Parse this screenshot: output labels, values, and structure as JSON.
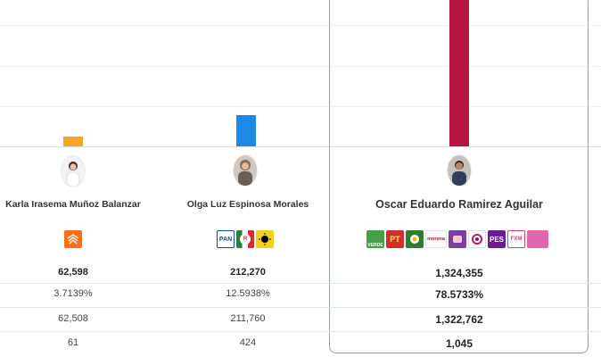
{
  "candidates": [
    {
      "name": "Karla Irasema Muñoz Balanzar",
      "bar_color": "#f5a623",
      "parties": [
        {
          "icon": "movimiento-ciudadano-logo",
          "label": "",
          "color": "#ff6f1a"
        }
      ],
      "stats": {
        "votes": "62,598",
        "percent": "3.7139%",
        "row3": "62,508",
        "row4": "61"
      }
    },
    {
      "name": "Olga Luz Espinosa Morales",
      "bar_color": "#1e88e5",
      "parties": [
        {
          "icon": "pan-logo",
          "label": "PAN",
          "color": "#0a4fa3"
        },
        {
          "icon": "pri-logo",
          "label": "PRI",
          "color": "#d32f2f"
        },
        {
          "icon": "prd-logo",
          "label": "PRD",
          "color": "#f2d11b"
        }
      ],
      "stats": {
        "votes": "212,270",
        "percent": "12.5938%",
        "row3": "211,760",
        "row4": "424"
      }
    },
    {
      "name": "Oscar Eduardo Ramirez Aguilar",
      "bar_color": "#b5153f",
      "parties": [
        {
          "icon": "pvem-logo",
          "label": "VERDE",
          "color": "#43a047"
        },
        {
          "icon": "pt-logo",
          "label": "PT",
          "color": "#d32f2f"
        },
        {
          "icon": "chiapas-unido-logo",
          "label": "",
          "color": "#2e7d32"
        },
        {
          "icon": "morena-logo",
          "label": "morena",
          "color": "#8b1e2d"
        },
        {
          "icon": "podemos-mover-logo",
          "label": "",
          "color": "#7b3fa0"
        },
        {
          "icon": "redes-sociales-progresistas-logo",
          "label": "",
          "color": "#c2185b"
        },
        {
          "icon": "pes-logo",
          "label": "PES",
          "color": "#6a1b9a"
        },
        {
          "icon": "fxm-logo",
          "label": "FXM",
          "color": "#e53973"
        },
        {
          "icon": "mover-a-chiapas-logo",
          "label": "",
          "color": "#e066b0"
        }
      ],
      "stats": {
        "votes": "1,324,355",
        "percent": "78.5733%",
        "row3": "1,322,762",
        "row4": "1,045"
      }
    }
  ]
}
